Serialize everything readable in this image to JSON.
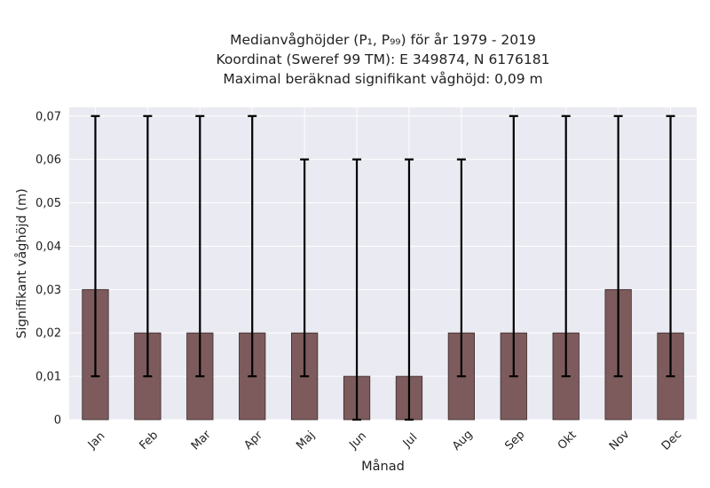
{
  "chart_data": {
    "type": "bar",
    "title": [
      "Medianvåghöjder (P₁, P₉₉) för år 1979 - 2019",
      "Koordinat (Sweref 99 TM): E 349874, N 6176181",
      "Maximal beräknad signifikant våghöjd: 0,09 m"
    ],
    "xlabel": "Månad",
    "ylabel": "Signifikant våghöjd (m)",
    "categories": [
      "Jan",
      "Feb",
      "Mar",
      "Apr",
      "Maj",
      "Jun",
      "Jul",
      "Aug",
      "Sep",
      "Okt",
      "Nov",
      "Dec"
    ],
    "values": [
      0.03,
      0.02,
      0.02,
      0.02,
      0.02,
      0.01,
      0.01,
      0.02,
      0.02,
      0.02,
      0.03,
      0.02
    ],
    "error_low": [
      0.01,
      0.01,
      0.01,
      0.01,
      0.01,
      0.0,
      0.0,
      0.01,
      0.01,
      0.01,
      0.01,
      0.01
    ],
    "error_high": [
      0.07,
      0.07,
      0.07,
      0.07,
      0.06,
      0.06,
      0.06,
      0.06,
      0.07,
      0.07,
      0.07,
      0.07
    ],
    "ylim": [
      0,
      0.072
    ],
    "yticks": [
      0,
      0.01,
      0.02,
      0.03,
      0.04,
      0.05,
      0.06,
      0.07
    ],
    "ytick_labels": [
      "0",
      "0,01",
      "0,02",
      "0,03",
      "0,04",
      "0,05",
      "0,06",
      "0,07"
    ],
    "grid": true,
    "colors": {
      "bar": "#7d5b5c",
      "bar_edge": "#3a2a2a",
      "error": "#000000",
      "plot_bg": "#eaeaf2",
      "grid": "#ffffff"
    }
  }
}
